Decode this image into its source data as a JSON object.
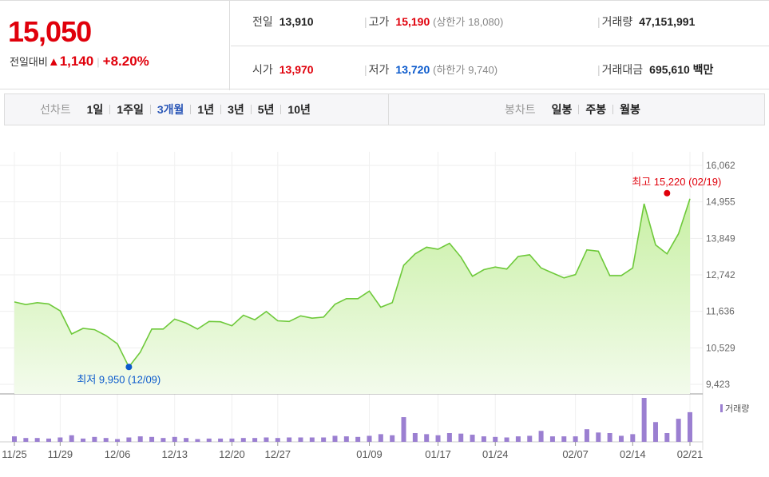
{
  "quote": {
    "price": "15,050",
    "change_label": "전일대비",
    "change_arrow": "▲",
    "change_amount": "1,140",
    "change_percent": "+8.20%",
    "prev_close_label": "전일",
    "prev_close": "13,910",
    "high_label": "고가",
    "high": "15,190",
    "upper_limit_label": "(상한가",
    "upper_limit": "18,080)",
    "volume_label": "거래량",
    "volume": "47,151,991",
    "open_label": "시가",
    "open": "13,970",
    "low_label": "저가",
    "low": "13,720",
    "lower_limit_label": "(하한가",
    "lower_limit": "9,740)",
    "trade_value_label": "거래대금",
    "trade_value": "695,610",
    "trade_value_unit": "백만"
  },
  "periods": {
    "line_title": "선차트",
    "line_items": [
      "1일",
      "1주일",
      "3개월",
      "1년",
      "3년",
      "5년",
      "10년"
    ],
    "line_active": "3개월",
    "candle_title": "봉차트",
    "candle_items": [
      "일봉",
      "주봉",
      "월봉"
    ]
  },
  "colors": {
    "up": "#e0000b",
    "down": "#0b5acc",
    "line": "#6ec93a",
    "volume": "#9b7fd1",
    "active": "#2b57b7"
  },
  "chart_data": {
    "type": "area",
    "y_ticks": [
      "16,062",
      "14,955",
      "13,849",
      "12,742",
      "11,636",
      "10,529",
      "9,423"
    ],
    "ylim": [
      9423,
      16062
    ],
    "x_tick_labels": [
      "11/25",
      "11/29",
      "12/06",
      "12/13",
      "12/20",
      "12/27",
      "01/09",
      "01/17",
      "01/24",
      "02/07",
      "02/14",
      "02/21"
    ],
    "x_tick_index": [
      0,
      4,
      9,
      14,
      19,
      23,
      31,
      37,
      42,
      49,
      54,
      59
    ],
    "values": [
      11920,
      11840,
      11900,
      11860,
      11650,
      10950,
      11120,
      11080,
      10900,
      10650,
      9950,
      10400,
      11100,
      11100,
      11400,
      11280,
      11100,
      11330,
      11320,
      11200,
      11520,
      11380,
      11630,
      11350,
      11330,
      11500,
      11430,
      11460,
      11850,
      12020,
      12020,
      12250,
      11760,
      11900,
      13030,
      13380,
      13580,
      13520,
      13700,
      13280,
      12700,
      12900,
      12980,
      12920,
      13300,
      13350,
      12950,
      12800,
      12650,
      12750,
      13500,
      13460,
      12720,
      12720,
      12950,
      14900,
      13650,
      13380,
      13990,
      15050
    ],
    "volume": [
      10,
      7,
      7,
      6,
      8,
      12,
      6,
      9,
      7,
      5,
      8,
      10,
      9,
      7,
      9,
      7,
      5,
      6,
      6,
      6,
      7,
      7,
      8,
      7,
      8,
      8,
      8,
      8,
      11,
      10,
      9,
      11,
      14,
      12,
      45,
      16,
      14,
      12,
      16,
      15,
      13,
      10,
      9,
      8,
      10,
      11,
      20,
      10,
      10,
      10,
      23,
      17,
      16,
      11,
      14,
      80,
      36,
      16,
      42,
      54
    ],
    "annotations": {
      "high": {
        "text": "최고 15,220 (02/19)",
        "value": 15220,
        "index": 57
      },
      "low": {
        "text": "최저 9,950 (12/09)",
        "value": 9950,
        "index": 10
      }
    },
    "volume_legend": "거래량"
  }
}
